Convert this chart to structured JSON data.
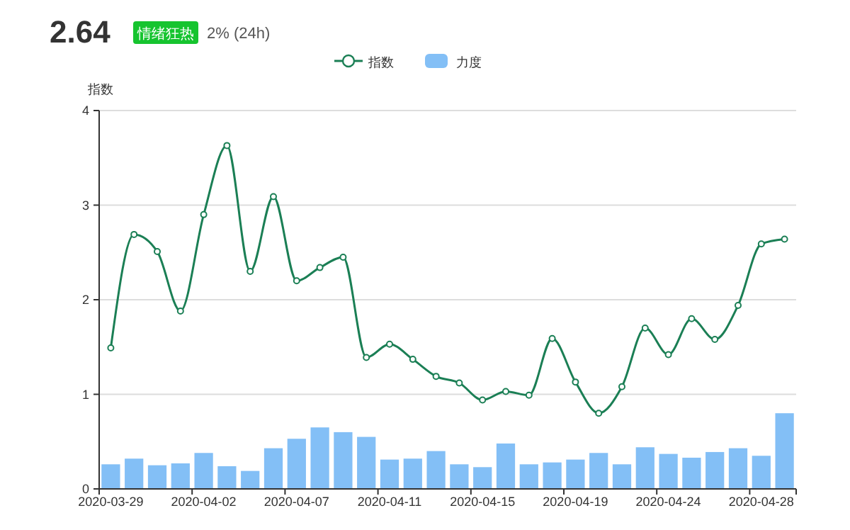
{
  "chart_data": {
    "type": "bar",
    "ylabel": "指数",
    "annotations": [
      "2.64",
      "情绪狂热",
      "2% (24h)"
    ],
    "categories": [
      "2020-03-29",
      null,
      null,
      null,
      "2020-04-02",
      null,
      null,
      null,
      "2020-04-07",
      null,
      null,
      null,
      "2020-04-11",
      null,
      null,
      null,
      "2020-04-15",
      null,
      null,
      null,
      "2020-04-19",
      null,
      null,
      null,
      "2020-04-24",
      null,
      null,
      null,
      "2020-04-28",
      null
    ],
    "series": [
      {
        "name": "指数",
        "type": "line",
        "color": "#1b7f55",
        "values": [
          1.49,
          2.69,
          2.51,
          1.88,
          2.9,
          3.63,
          2.3,
          3.09,
          2.2,
          2.34,
          2.45,
          1.39,
          1.53,
          1.37,
          1.19,
          1.12,
          0.94,
          1.03,
          0.99,
          1.59,
          1.13,
          0.8,
          1.08,
          1.7,
          1.42,
          1.8,
          1.58,
          1.94,
          2.59,
          2.64
        ]
      },
      {
        "name": "力度",
        "color": "#83bff6",
        "values": [
          0.26,
          0.32,
          0.25,
          0.27,
          0.38,
          0.24,
          0.19,
          0.43,
          0.53,
          0.65,
          0.6,
          0.55,
          0.31,
          0.32,
          0.4,
          0.26,
          0.23,
          0.48,
          0.26,
          0.28,
          0.31,
          0.38,
          0.26,
          0.44,
          0.37,
          0.33,
          0.39,
          0.43,
          0.35,
          0.8
        ]
      }
    ],
    "ylim": [
      0,
      4
    ],
    "yticks": [
      0,
      1,
      2,
      3,
      4
    ],
    "grid": "y",
    "legend": "top",
    "marker": "circle"
  }
}
